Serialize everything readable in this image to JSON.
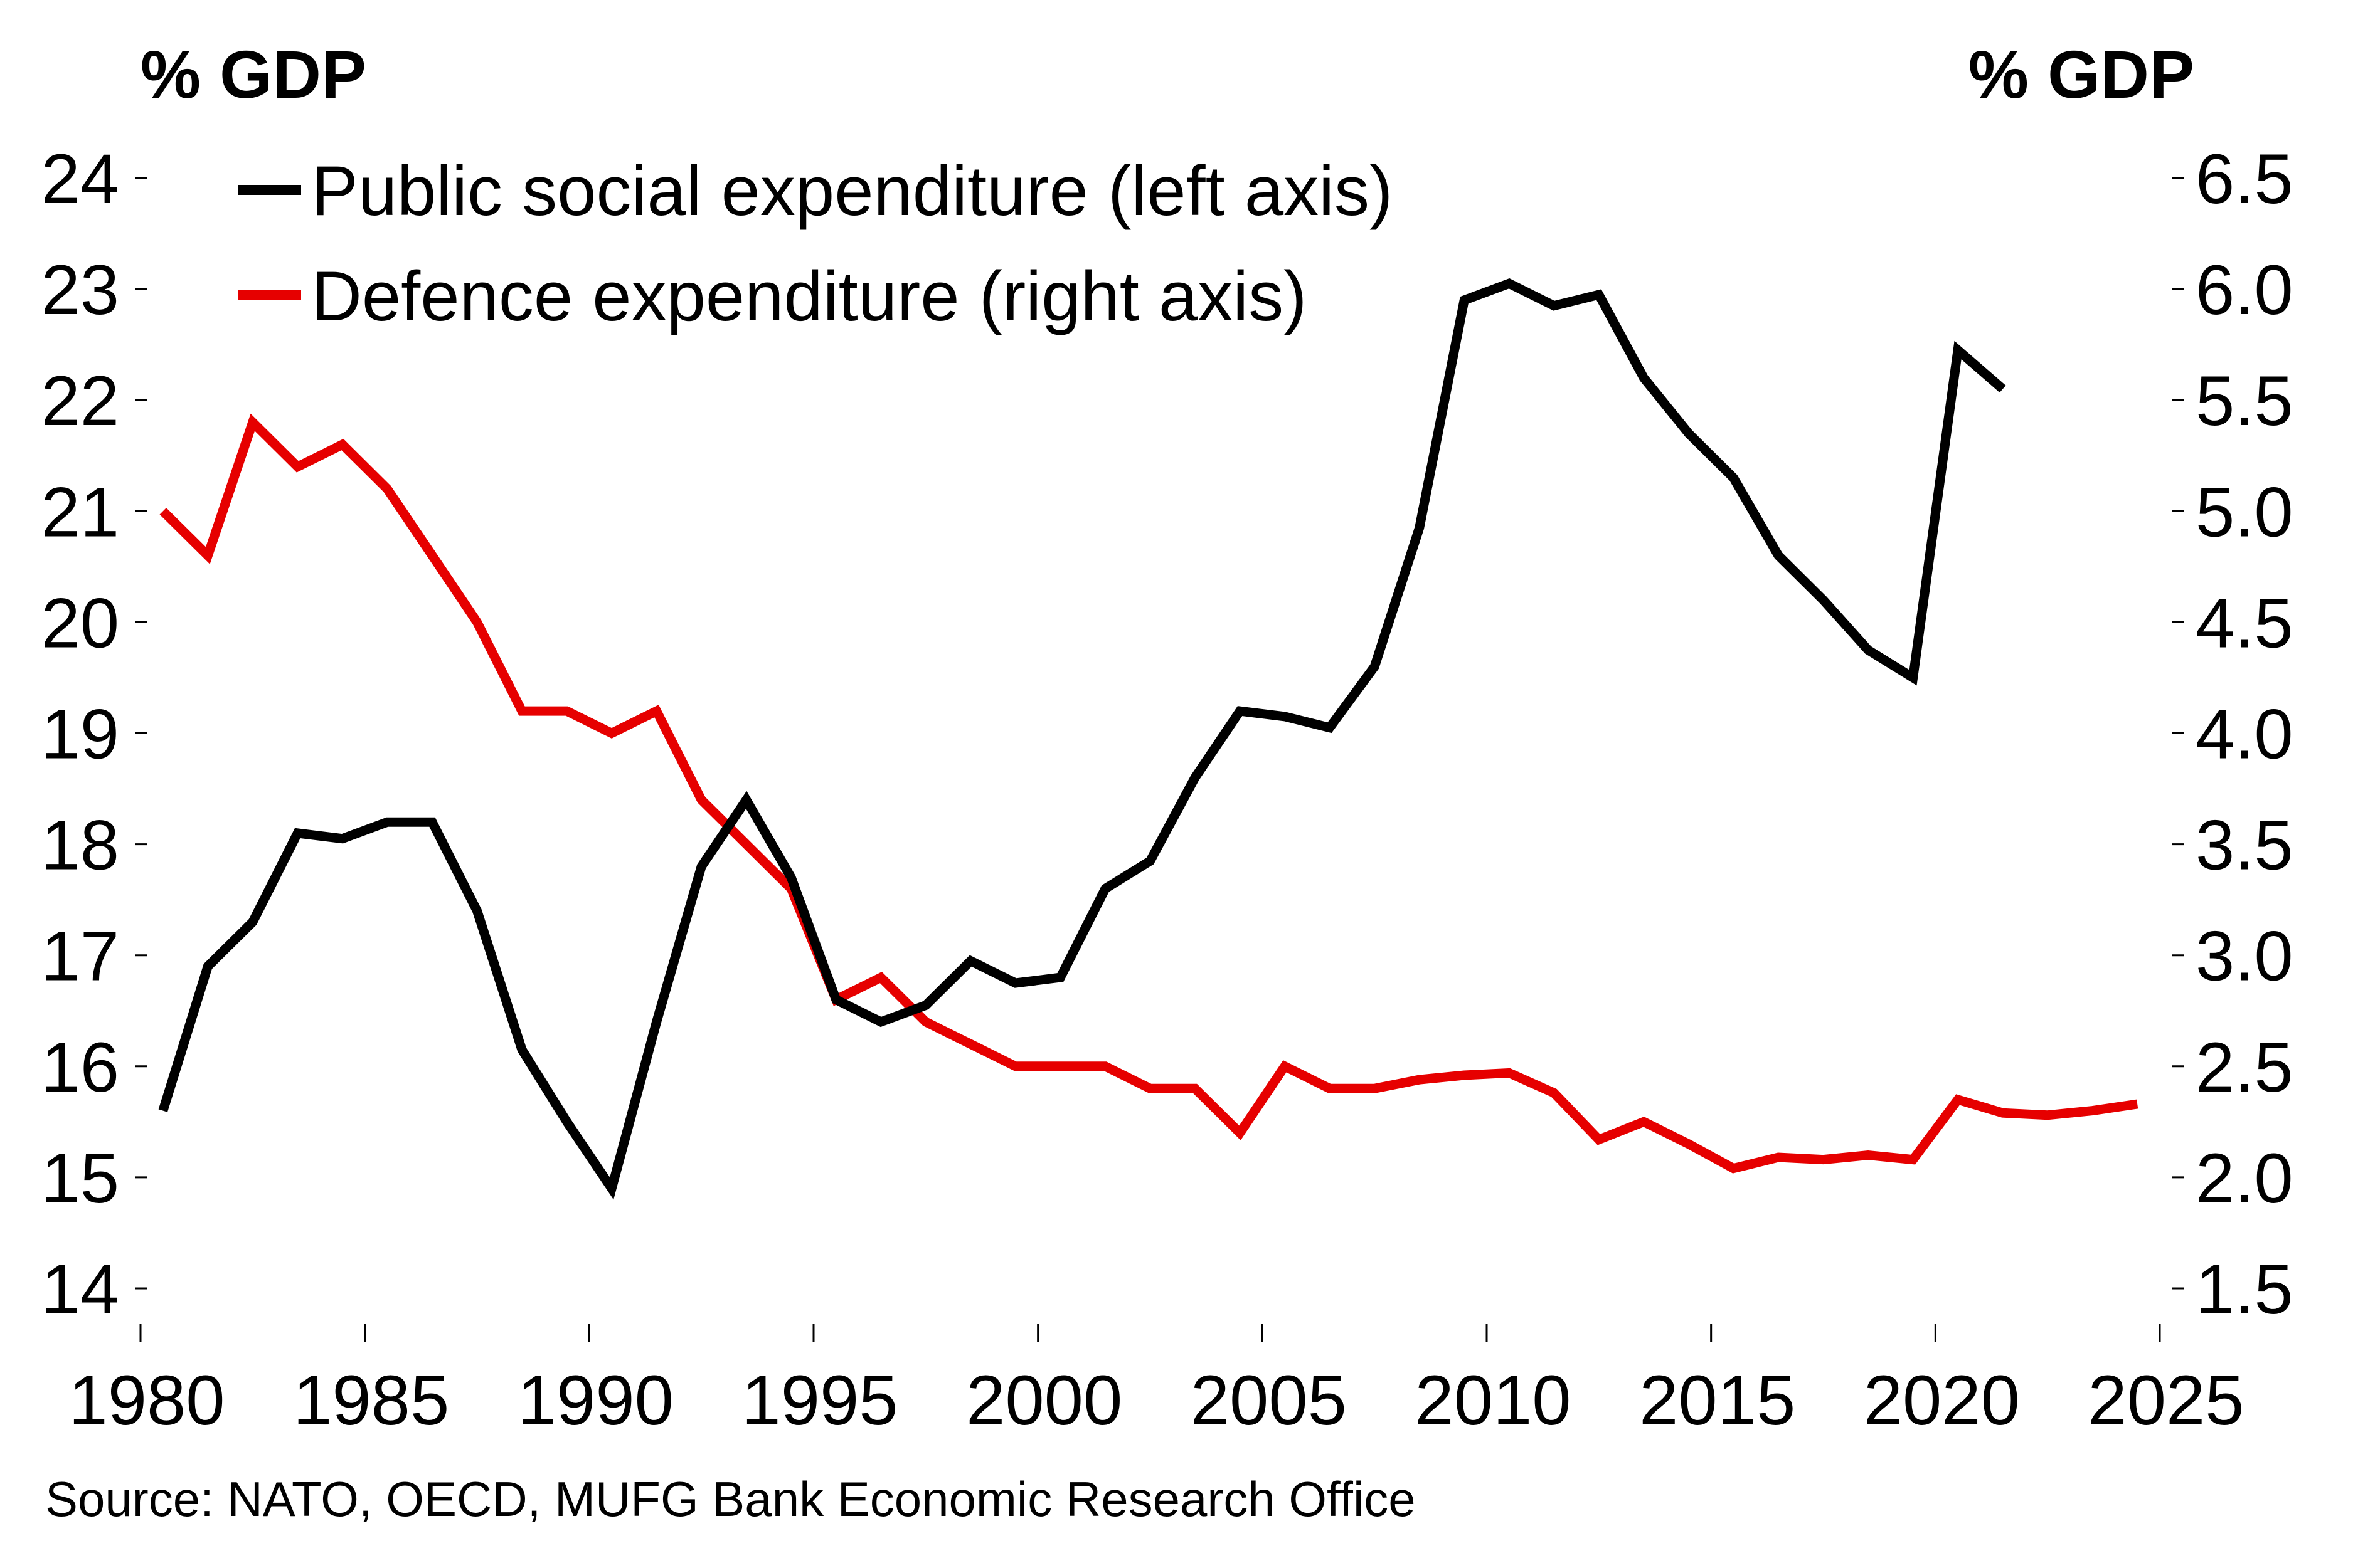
{
  "chart_data": {
    "type": "line",
    "title": "",
    "left_axis": {
      "label": "% GDP",
      "ylim": [
        14,
        24
      ],
      "ticks": [
        "14",
        "15",
        "16",
        "17",
        "18",
        "19",
        "20",
        "21",
        "22",
        "23",
        "24"
      ]
    },
    "right_axis": {
      "label": "% GDP",
      "ylim": [
        1.5,
        6.5
      ],
      "ticks": [
        "1.5",
        "2.0",
        "2.5",
        "3.0",
        "3.5",
        "4.0",
        "4.5",
        "5.0",
        "5.5",
        "6.0",
        "6.5"
      ]
    },
    "x_axis": {
      "label": "",
      "xlim": [
        1980,
        2025
      ],
      "ticks": [
        "1980",
        "1985",
        "1990",
        "1995",
        "2000",
        "2005",
        "2010",
        "2015",
        "2020",
        "2025"
      ]
    },
    "grid": false,
    "legend_position": "top-left",
    "series": [
      {
        "name": "Public social expenditure (left axis)",
        "axis": "left",
        "color": "#000000",
        "x": [
          1980,
          1981,
          1982,
          1983,
          1984,
          1985,
          1986,
          1987,
          1988,
          1989,
          1990,
          1991,
          1992,
          1993,
          1994,
          1995,
          1996,
          1997,
          1998,
          1999,
          2000,
          2001,
          2002,
          2003,
          2004,
          2005,
          2006,
          2007,
          2008,
          2009,
          2010,
          2011,
          2012,
          2013,
          2014,
          2015,
          2016,
          2017,
          2018,
          2019,
          2020,
          2021
        ],
        "values": [
          15.6,
          16.9,
          17.3,
          18.1,
          18.05,
          18.2,
          18.2,
          17.4,
          16.15,
          15.5,
          14.9,
          16.4,
          17.8,
          18.4,
          17.7,
          16.6,
          16.4,
          16.55,
          16.95,
          16.75,
          16.8,
          17.6,
          17.85,
          18.6,
          19.2,
          19.15,
          19.05,
          19.6,
          20.85,
          22.9,
          23.05,
          22.85,
          22.95,
          22.2,
          21.7,
          21.3,
          20.6,
          20.2,
          19.75,
          19.5,
          22.45,
          22.1
        ]
      },
      {
        "name": "Defence expenditure (right axis)",
        "axis": "right",
        "color": "#e60000",
        "x": [
          1980,
          1981,
          1982,
          1983,
          1984,
          1985,
          1986,
          1987,
          1988,
          1989,
          1990,
          1991,
          1992,
          1993,
          1994,
          1995,
          1996,
          1997,
          1998,
          1999,
          2000,
          2001,
          2002,
          2003,
          2004,
          2005,
          2006,
          2007,
          2008,
          2009,
          2010,
          2011,
          2012,
          2013,
          2014,
          2015,
          2016,
          2017,
          2018,
          2019,
          2020,
          2021,
          2022,
          2023,
          2024
        ],
        "values": [
          5.0,
          4.8,
          5.4,
          5.2,
          5.3,
          5.1,
          4.8,
          4.5,
          4.1,
          4.1,
          4.0,
          4.1,
          3.7,
          3.5,
          3.3,
          2.8,
          2.9,
          2.7,
          2.6,
          2.5,
          2.5,
          2.5,
          2.4,
          2.4,
          2.2,
          2.5,
          2.4,
          2.4,
          2.44,
          2.46,
          2.47,
          2.38,
          2.17,
          2.25,
          2.15,
          2.04,
          2.09,
          2.08,
          2.1,
          2.08,
          2.35,
          2.29,
          2.28,
          2.3,
          2.33
        ]
      }
    ],
    "source": "Source: NATO, OECD, MUFG Bank Economic Research Office"
  }
}
